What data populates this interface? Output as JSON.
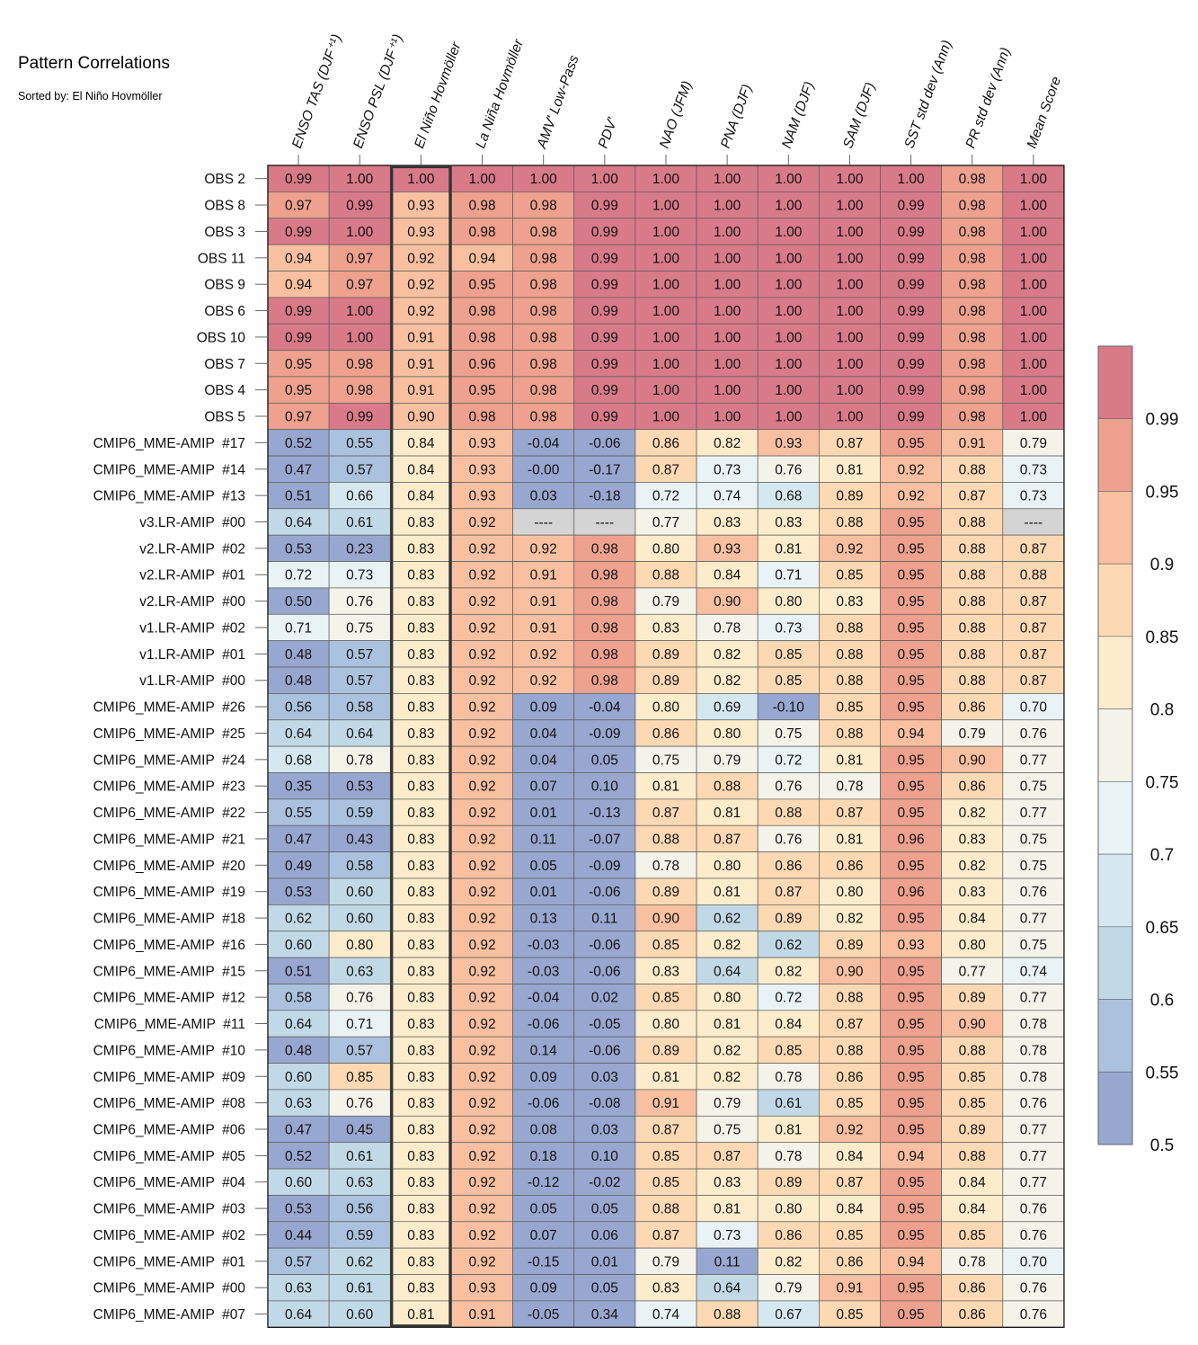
{
  "title": "Pattern Correlations",
  "subtitle": "Sorted by: El Niño Hovmöller",
  "chart_data": {
    "type": "heatmap",
    "columns": [
      "ENSO TAS (DJF⁺¹)",
      "ENSO PSL (DJF⁺¹)",
      "El Niño Hovmöller",
      "La Niña Hovmöller",
      "AMV' Low-Pass",
      "PDV'",
      "NAO (JFM)",
      "PNA (DJF)",
      "NAM (DJF)",
      "SAM (DJF)",
      "SST std dev (Ann)",
      "PR std dev (Ann)",
      "Mean Score"
    ],
    "highlighted_column": "El Niño Hovmöller",
    "rows": [
      "OBS 2",
      "OBS 8",
      "OBS 3",
      "OBS 11",
      "OBS 9",
      "OBS 6",
      "OBS 10",
      "OBS 7",
      "OBS 4",
      "OBS 5",
      "CMIP6_MME-AMIP  #17",
      "CMIP6_MME-AMIP  #14",
      "CMIP6_MME-AMIP  #13",
      "v3.LR-AMIP  #00",
      "v2.LR-AMIP  #02",
      "v2.LR-AMIP  #01",
      "v2.LR-AMIP  #00",
      "v1.LR-AMIP  #02",
      "v1.LR-AMIP  #01",
      "v1.LR-AMIP  #00",
      "CMIP6_MME-AMIP  #26",
      "CMIP6_MME-AMIP  #25",
      "CMIP6_MME-AMIP  #24",
      "CMIP6_MME-AMIP  #23",
      "CMIP6_MME-AMIP  #22",
      "CMIP6_MME-AMIP  #21",
      "CMIP6_MME-AMIP  #20",
      "CMIP6_MME-AMIP  #19",
      "CMIP6_MME-AMIP  #18",
      "CMIP6_MME-AMIP  #16",
      "CMIP6_MME-AMIP  #15",
      "CMIP6_MME-AMIP  #12",
      "CMIP6_MME-AMIP  #11",
      "CMIP6_MME-AMIP  #10",
      "CMIP6_MME-AMIP  #09",
      "CMIP6_MME-AMIP  #08",
      "CMIP6_MME-AMIP  #06",
      "CMIP6_MME-AMIP  #05",
      "CMIP6_MME-AMIP  #04",
      "CMIP6_MME-AMIP  #03",
      "CMIP6_MME-AMIP  #02",
      "CMIP6_MME-AMIP  #01",
      "CMIP6_MME-AMIP  #00",
      "CMIP6_MME-AMIP  #07"
    ],
    "values": [
      [
        "0.99",
        "1.00",
        "1.00",
        "1.00",
        "1.00",
        "1.00",
        "1.00",
        "1.00",
        "1.00",
        "1.00",
        "1.00",
        "0.98",
        "1.00"
      ],
      [
        "0.97",
        "0.99",
        "0.93",
        "0.98",
        "0.98",
        "0.99",
        "1.00",
        "1.00",
        "1.00",
        "1.00",
        "0.99",
        "0.98",
        "1.00"
      ],
      [
        "0.99",
        "1.00",
        "0.93",
        "0.98",
        "0.98",
        "0.99",
        "1.00",
        "1.00",
        "1.00",
        "1.00",
        "0.99",
        "0.98",
        "1.00"
      ],
      [
        "0.94",
        "0.97",
        "0.92",
        "0.94",
        "0.98",
        "0.99",
        "1.00",
        "1.00",
        "1.00",
        "1.00",
        "0.99",
        "0.98",
        "1.00"
      ],
      [
        "0.94",
        "0.97",
        "0.92",
        "0.95",
        "0.98",
        "0.99",
        "1.00",
        "1.00",
        "1.00",
        "1.00",
        "0.99",
        "0.98",
        "1.00"
      ],
      [
        "0.99",
        "1.00",
        "0.92",
        "0.98",
        "0.98",
        "0.99",
        "1.00",
        "1.00",
        "1.00",
        "1.00",
        "0.99",
        "0.98",
        "1.00"
      ],
      [
        "0.99",
        "1.00",
        "0.91",
        "0.98",
        "0.98",
        "0.99",
        "1.00",
        "1.00",
        "1.00",
        "1.00",
        "0.99",
        "0.98",
        "1.00"
      ],
      [
        "0.95",
        "0.98",
        "0.91",
        "0.96",
        "0.98",
        "0.99",
        "1.00",
        "1.00",
        "1.00",
        "1.00",
        "0.99",
        "0.98",
        "1.00"
      ],
      [
        "0.95",
        "0.98",
        "0.91",
        "0.95",
        "0.98",
        "0.99",
        "1.00",
        "1.00",
        "1.00",
        "1.00",
        "0.99",
        "0.98",
        "1.00"
      ],
      [
        "0.97",
        "0.99",
        "0.90",
        "0.98",
        "0.98",
        "0.99",
        "1.00",
        "1.00",
        "1.00",
        "1.00",
        "0.99",
        "0.98",
        "1.00"
      ],
      [
        "0.52",
        "0.55",
        "0.84",
        "0.93",
        "-0.04",
        "-0.06",
        "0.86",
        "0.82",
        "0.93",
        "0.87",
        "0.95",
        "0.91",
        "0.79"
      ],
      [
        "0.47",
        "0.57",
        "0.84",
        "0.93",
        "-0.00",
        "-0.17",
        "0.87",
        "0.73",
        "0.76",
        "0.81",
        "0.92",
        "0.88",
        "0.73"
      ],
      [
        "0.51",
        "0.66",
        "0.84",
        "0.93",
        "0.03",
        "-0.18",
        "0.72",
        "0.74",
        "0.68",
        "0.89",
        "0.92",
        "0.87",
        "0.73"
      ],
      [
        "0.64",
        "0.61",
        "0.83",
        "0.92",
        "----",
        "----",
        "0.77",
        "0.83",
        "0.83",
        "0.88",
        "0.95",
        "0.88",
        "----"
      ],
      [
        "0.53",
        "0.23",
        "0.83",
        "0.92",
        "0.92",
        "0.98",
        "0.80",
        "0.93",
        "0.81",
        "0.92",
        "0.95",
        "0.88",
        "0.87"
      ],
      [
        "0.72",
        "0.73",
        "0.83",
        "0.92",
        "0.91",
        "0.98",
        "0.88",
        "0.84",
        "0.71",
        "0.85",
        "0.95",
        "0.88",
        "0.88"
      ],
      [
        "0.50",
        "0.76",
        "0.83",
        "0.92",
        "0.91",
        "0.98",
        "0.79",
        "0.90",
        "0.80",
        "0.83",
        "0.95",
        "0.88",
        "0.87"
      ],
      [
        "0.71",
        "0.75",
        "0.83",
        "0.92",
        "0.91",
        "0.98",
        "0.83",
        "0.78",
        "0.73",
        "0.88",
        "0.95",
        "0.88",
        "0.87"
      ],
      [
        "0.48",
        "0.57",
        "0.83",
        "0.92",
        "0.92",
        "0.98",
        "0.89",
        "0.82",
        "0.85",
        "0.88",
        "0.95",
        "0.88",
        "0.87"
      ],
      [
        "0.48",
        "0.57",
        "0.83",
        "0.92",
        "0.92",
        "0.98",
        "0.89",
        "0.82",
        "0.85",
        "0.88",
        "0.95",
        "0.88",
        "0.87"
      ],
      [
        "0.56",
        "0.58",
        "0.83",
        "0.92",
        "0.09",
        "-0.04",
        "0.80",
        "0.69",
        "-0.10",
        "0.85",
        "0.95",
        "0.86",
        "0.70"
      ],
      [
        "0.64",
        "0.64",
        "0.83",
        "0.92",
        "0.04",
        "-0.09",
        "0.86",
        "0.80",
        "0.75",
        "0.88",
        "0.94",
        "0.79",
        "0.76"
      ],
      [
        "0.68",
        "0.78",
        "0.83",
        "0.92",
        "0.04",
        "0.05",
        "0.75",
        "0.79",
        "0.72",
        "0.81",
        "0.95",
        "0.90",
        "0.77"
      ],
      [
        "0.35",
        "0.53",
        "0.83",
        "0.92",
        "0.07",
        "0.10",
        "0.81",
        "0.88",
        "0.76",
        "0.78",
        "0.95",
        "0.86",
        "0.75"
      ],
      [
        "0.55",
        "0.59",
        "0.83",
        "0.92",
        "0.01",
        "-0.13",
        "0.87",
        "0.81",
        "0.88",
        "0.87",
        "0.95",
        "0.82",
        "0.77"
      ],
      [
        "0.47",
        "0.43",
        "0.83",
        "0.92",
        "0.11",
        "-0.07",
        "0.88",
        "0.87",
        "0.76",
        "0.81",
        "0.96",
        "0.83",
        "0.75"
      ],
      [
        "0.49",
        "0.58",
        "0.83",
        "0.92",
        "0.05",
        "-0.09",
        "0.78",
        "0.80",
        "0.86",
        "0.86",
        "0.95",
        "0.82",
        "0.75"
      ],
      [
        "0.53",
        "0.60",
        "0.83",
        "0.92",
        "0.01",
        "-0.06",
        "0.89",
        "0.81",
        "0.87",
        "0.80",
        "0.96",
        "0.83",
        "0.76"
      ],
      [
        "0.62",
        "0.60",
        "0.83",
        "0.92",
        "0.13",
        "0.11",
        "0.90",
        "0.62",
        "0.89",
        "0.82",
        "0.95",
        "0.84",
        "0.77"
      ],
      [
        "0.60",
        "0.80",
        "0.83",
        "0.92",
        "-0.03",
        "-0.06",
        "0.85",
        "0.82",
        "0.62",
        "0.89",
        "0.93",
        "0.80",
        "0.75"
      ],
      [
        "0.51",
        "0.63",
        "0.83",
        "0.92",
        "-0.03",
        "-0.06",
        "0.83",
        "0.64",
        "0.82",
        "0.90",
        "0.95",
        "0.77",
        "0.74"
      ],
      [
        "0.58",
        "0.76",
        "0.83",
        "0.92",
        "-0.04",
        "0.02",
        "0.85",
        "0.80",
        "0.72",
        "0.88",
        "0.95",
        "0.89",
        "0.77"
      ],
      [
        "0.64",
        "0.71",
        "0.83",
        "0.92",
        "-0.06",
        "-0.05",
        "0.80",
        "0.81",
        "0.84",
        "0.87",
        "0.95",
        "0.90",
        "0.78"
      ],
      [
        "0.48",
        "0.57",
        "0.83",
        "0.92",
        "0.14",
        "-0.06",
        "0.89",
        "0.82",
        "0.85",
        "0.88",
        "0.95",
        "0.88",
        "0.78"
      ],
      [
        "0.60",
        "0.85",
        "0.83",
        "0.92",
        "0.09",
        "0.03",
        "0.81",
        "0.82",
        "0.78",
        "0.86",
        "0.95",
        "0.85",
        "0.78"
      ],
      [
        "0.63",
        "0.76",
        "0.83",
        "0.92",
        "-0.06",
        "-0.08",
        "0.91",
        "0.79",
        "0.61",
        "0.85",
        "0.95",
        "0.85",
        "0.76"
      ],
      [
        "0.47",
        "0.45",
        "0.83",
        "0.92",
        "0.08",
        "0.03",
        "0.87",
        "0.75",
        "0.81",
        "0.92",
        "0.95",
        "0.89",
        "0.77"
      ],
      [
        "0.52",
        "0.61",
        "0.83",
        "0.92",
        "0.18",
        "0.10",
        "0.85",
        "0.87",
        "0.78",
        "0.84",
        "0.94",
        "0.88",
        "0.77"
      ],
      [
        "0.60",
        "0.63",
        "0.83",
        "0.92",
        "-0.12",
        "-0.02",
        "0.85",
        "0.83",
        "0.89",
        "0.87",
        "0.95",
        "0.84",
        "0.77"
      ],
      [
        "0.53",
        "0.56",
        "0.83",
        "0.92",
        "0.05",
        "0.05",
        "0.88",
        "0.81",
        "0.80",
        "0.84",
        "0.95",
        "0.84",
        "0.76"
      ],
      [
        "0.44",
        "0.59",
        "0.83",
        "0.92",
        "0.07",
        "0.06",
        "0.87",
        "0.73",
        "0.86",
        "0.85",
        "0.95",
        "0.85",
        "0.76"
      ],
      [
        "0.57",
        "0.62",
        "0.83",
        "0.92",
        "-0.15",
        "0.01",
        "0.79",
        "0.11",
        "0.82",
        "0.86",
        "0.94",
        "0.78",
        "0.70"
      ],
      [
        "0.63",
        "0.61",
        "0.83",
        "0.93",
        "0.09",
        "0.05",
        "0.83",
        "0.64",
        "0.79",
        "0.91",
        "0.95",
        "0.86",
        "0.76"
      ],
      [
        "0.64",
        "0.60",
        "0.81",
        "0.91",
        "-0.05",
        "0.34",
        "0.74",
        "0.88",
        "0.67",
        "0.85",
        "0.95",
        "0.86",
        "0.76"
      ]
    ],
    "missing_color": "#d4d4d4",
    "colorbar": {
      "ticks": [
        "0.99",
        "0.95",
        "0.9",
        "0.85",
        "0.8",
        "0.75",
        "0.7",
        "0.65",
        "0.6",
        "0.55",
        "0.5"
      ],
      "bounds": [
        0.5,
        0.55,
        0.6,
        0.65,
        0.7,
        0.75,
        0.8,
        0.85,
        0.9,
        0.95,
        0.99
      ],
      "colors": [
        "#97a7cf",
        "#abc2de",
        "#c1d9e7",
        "#d5e8f0",
        "#e9f3f6",
        "#f4f3ea",
        "#fdeccb",
        "#fdd9b3",
        "#f8c0a0",
        "#eda18e",
        "#d97a89"
      ]
    }
  }
}
